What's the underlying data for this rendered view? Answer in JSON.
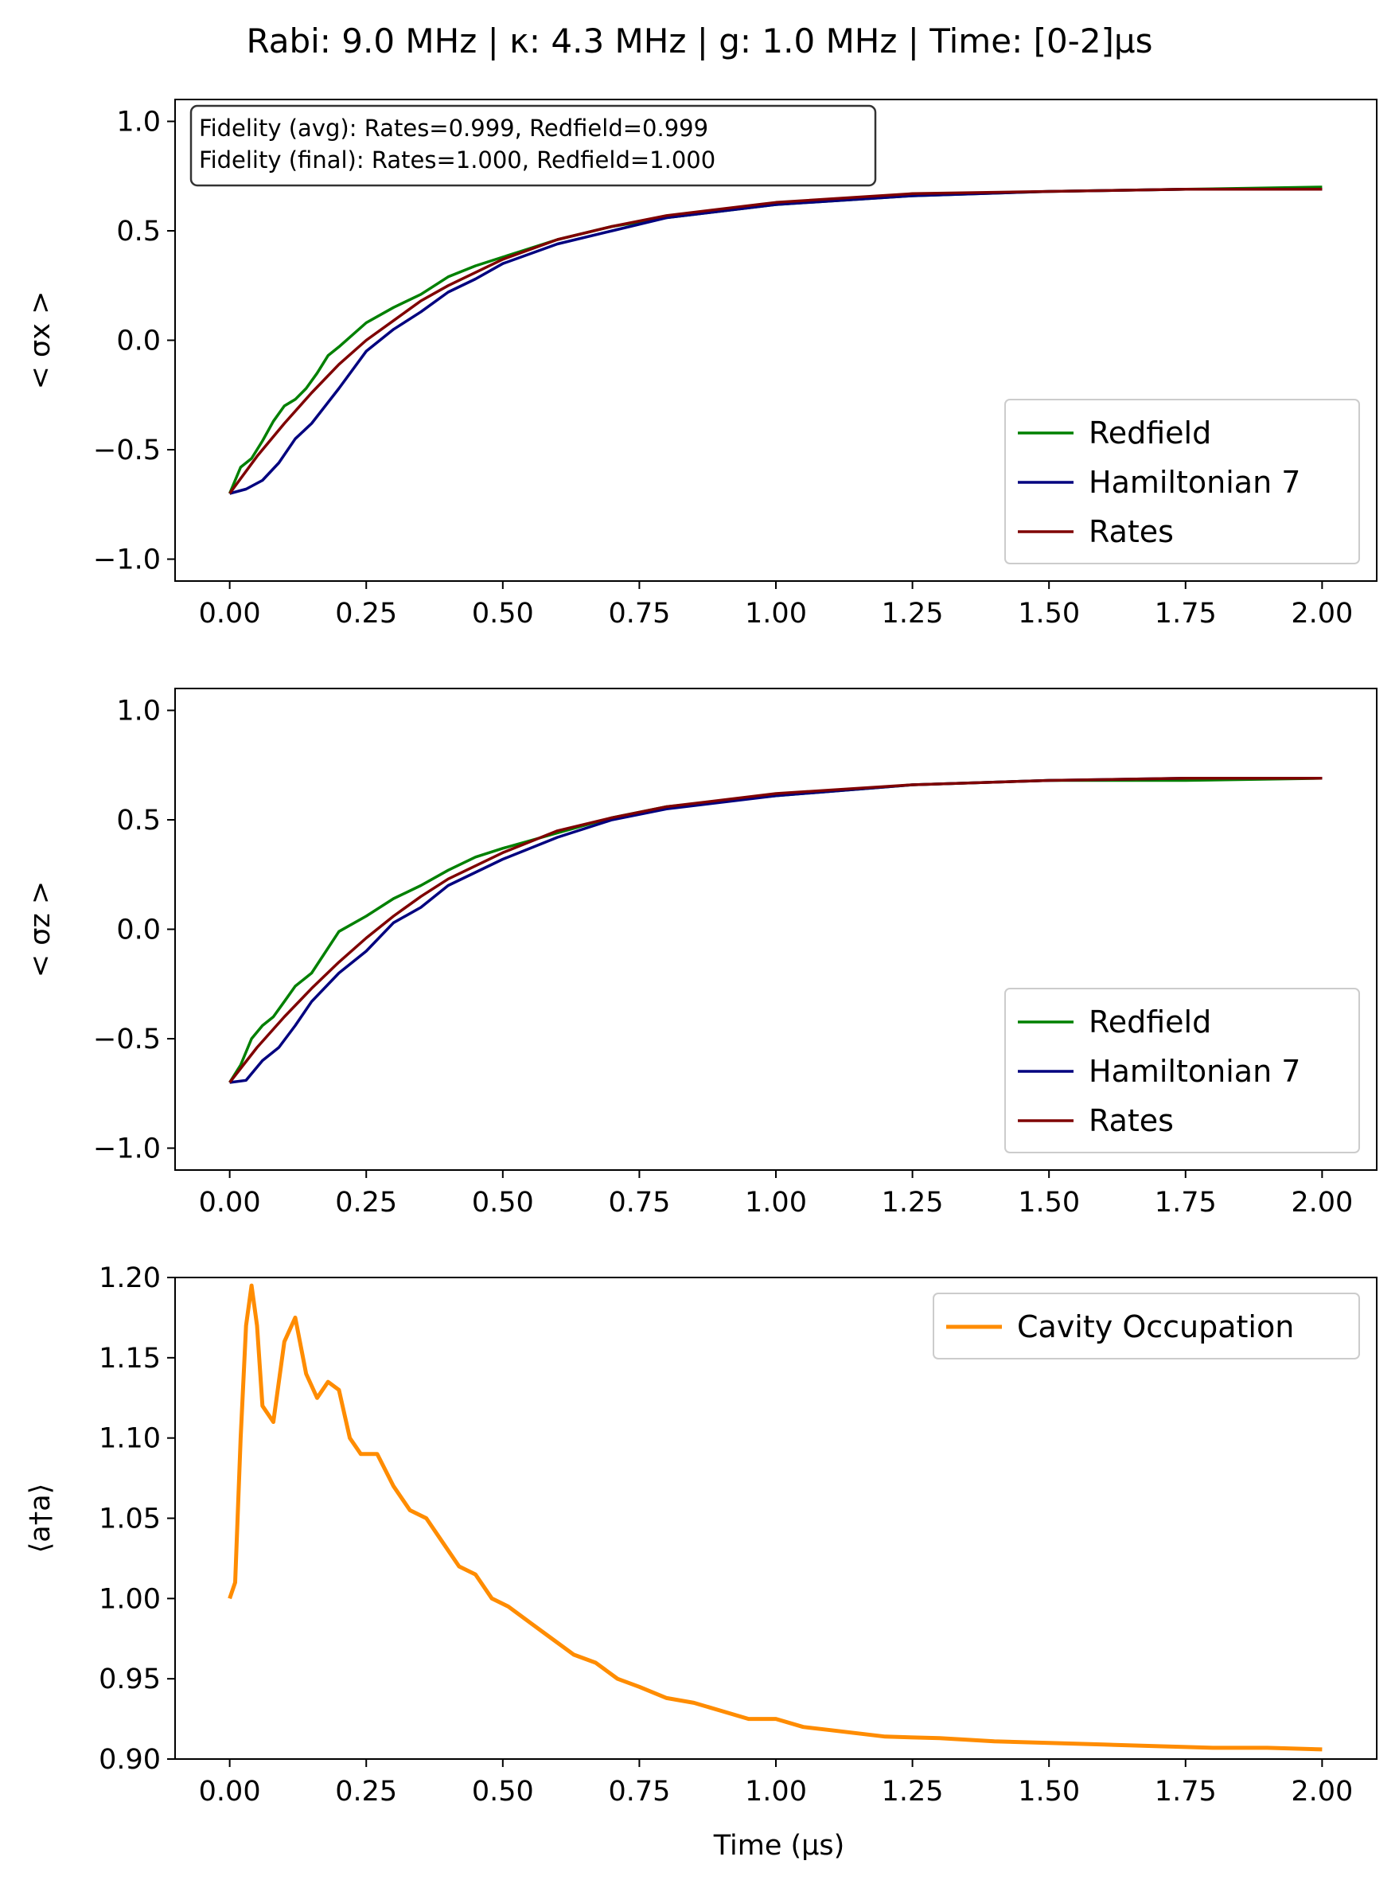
{
  "figure": {
    "title": "Rabi: 9.0 MHz | κ: 4.3 MHz | g: 1.0 MHz | Time: [0-2]μs",
    "xlabel": "Time (μs)"
  },
  "chart_data": [
    {
      "type": "line",
      "ylabel": "< σx >",
      "xlim": [
        -0.1,
        2.1
      ],
      "ylim": [
        -1.1,
        1.1
      ],
      "x_ticks": [
        "0.00",
        "0.25",
        "0.50",
        "0.75",
        "1.00",
        "1.25",
        "1.50",
        "1.75",
        "2.00"
      ],
      "y_ticks": [
        "−1.0",
        "−0.5",
        "0.0",
        "0.5",
        "1.0"
      ],
      "grid": false,
      "legend_position": "lower-right",
      "annotation": [
        "Fidelity (avg): Rates=0.999, Redfield=0.999",
        "Fidelity (final): Rates=1.000, Redfield=1.000"
      ],
      "series": [
        {
          "name": "Redfield",
          "color": "#008000",
          "x": [
            0,
            0.02,
            0.04,
            0.06,
            0.08,
            0.1,
            0.12,
            0.14,
            0.16,
            0.18,
            0.2,
            0.25,
            0.3,
            0.35,
            0.4,
            0.45,
            0.5,
            0.6,
            0.7,
            0.8,
            1.0,
            1.25,
            1.5,
            1.75,
            2.0
          ],
          "y": [
            -0.7,
            -0.58,
            -0.54,
            -0.46,
            -0.37,
            -0.3,
            -0.27,
            -0.22,
            -0.15,
            -0.07,
            -0.03,
            0.08,
            0.15,
            0.21,
            0.29,
            0.34,
            0.38,
            0.46,
            0.52,
            0.56,
            0.62,
            0.66,
            0.68,
            0.69,
            0.7
          ]
        },
        {
          "name": "Hamiltonian 7",
          "color": "#00007f",
          "x": [
            0,
            0.03,
            0.06,
            0.09,
            0.12,
            0.15,
            0.2,
            0.25,
            0.3,
            0.35,
            0.4,
            0.45,
            0.5,
            0.6,
            0.7,
            0.8,
            1.0,
            1.25,
            1.5,
            1.75,
            2.0
          ],
          "y": [
            -0.7,
            -0.68,
            -0.64,
            -0.56,
            -0.45,
            -0.38,
            -0.22,
            -0.05,
            0.05,
            0.13,
            0.22,
            0.28,
            0.35,
            0.44,
            0.5,
            0.56,
            0.62,
            0.66,
            0.68,
            0.69,
            0.69
          ]
        },
        {
          "name": "Rates",
          "color": "#7f0000",
          "x": [
            0,
            0.05,
            0.1,
            0.15,
            0.2,
            0.25,
            0.3,
            0.35,
            0.4,
            0.5,
            0.6,
            0.7,
            0.8,
            1.0,
            1.25,
            1.5,
            1.75,
            2.0
          ],
          "y": [
            -0.7,
            -0.53,
            -0.38,
            -0.24,
            -0.11,
            0.0,
            0.09,
            0.18,
            0.25,
            0.37,
            0.46,
            0.52,
            0.57,
            0.63,
            0.67,
            0.68,
            0.69,
            0.69
          ]
        }
      ]
    },
    {
      "type": "line",
      "ylabel": "< σz >",
      "xlim": [
        -0.1,
        2.1
      ],
      "ylim": [
        -1.1,
        1.1
      ],
      "x_ticks": [
        "0.00",
        "0.25",
        "0.50",
        "0.75",
        "1.00",
        "1.25",
        "1.50",
        "1.75",
        "2.00"
      ],
      "y_ticks": [
        "−1.0",
        "−0.5",
        "0.0",
        "0.5",
        "1.0"
      ],
      "grid": false,
      "legend_position": "lower-right",
      "series": [
        {
          "name": "Redfield",
          "color": "#008000",
          "x": [
            0,
            0.02,
            0.04,
            0.06,
            0.08,
            0.1,
            0.12,
            0.15,
            0.2,
            0.25,
            0.3,
            0.35,
            0.4,
            0.45,
            0.5,
            0.6,
            0.7,
            0.8,
            1.0,
            1.25,
            1.5,
            1.75,
            2.0
          ],
          "y": [
            -0.7,
            -0.62,
            -0.5,
            -0.44,
            -0.4,
            -0.33,
            -0.26,
            -0.2,
            -0.01,
            0.06,
            0.14,
            0.2,
            0.27,
            0.33,
            0.37,
            0.44,
            0.51,
            0.56,
            0.61,
            0.66,
            0.68,
            0.68,
            0.69
          ]
        },
        {
          "name": "Hamiltonian 7",
          "color": "#00007f",
          "x": [
            0,
            0.03,
            0.06,
            0.09,
            0.12,
            0.15,
            0.2,
            0.25,
            0.3,
            0.35,
            0.4,
            0.45,
            0.5,
            0.6,
            0.7,
            0.8,
            1.0,
            1.25,
            1.5,
            1.75,
            2.0
          ],
          "y": [
            -0.7,
            -0.69,
            -0.6,
            -0.54,
            -0.44,
            -0.33,
            -0.2,
            -0.1,
            0.03,
            0.1,
            0.2,
            0.26,
            0.32,
            0.42,
            0.5,
            0.55,
            0.61,
            0.66,
            0.68,
            0.69,
            0.69
          ]
        },
        {
          "name": "Rates",
          "color": "#7f0000",
          "x": [
            0,
            0.05,
            0.1,
            0.15,
            0.2,
            0.25,
            0.3,
            0.35,
            0.4,
            0.5,
            0.6,
            0.7,
            0.8,
            1.0,
            1.25,
            1.5,
            1.75,
            2.0
          ],
          "y": [
            -0.7,
            -0.54,
            -0.4,
            -0.27,
            -0.15,
            -0.04,
            0.06,
            0.15,
            0.23,
            0.35,
            0.45,
            0.51,
            0.56,
            0.62,
            0.66,
            0.68,
            0.69,
            0.69
          ]
        }
      ]
    },
    {
      "type": "line",
      "ylabel": "⟨a†a⟩",
      "xlabel": "Time (μs)",
      "xlim": [
        -0.1,
        2.1
      ],
      "ylim": [
        0.9,
        1.2
      ],
      "x_ticks": [
        "0.00",
        "0.25",
        "0.50",
        "0.75",
        "1.00",
        "1.25",
        "1.50",
        "1.75",
        "2.00"
      ],
      "y_ticks": [
        "0.90",
        "0.95",
        "1.00",
        "1.05",
        "1.10",
        "1.15",
        "1.20"
      ],
      "grid": false,
      "legend_position": "top-right",
      "series": [
        {
          "name": "Cavity Occupation",
          "color": "#ff8c00",
          "x": [
            0,
            0.01,
            0.02,
            0.03,
            0.04,
            0.05,
            0.06,
            0.08,
            0.1,
            0.12,
            0.14,
            0.16,
            0.18,
            0.2,
            0.22,
            0.24,
            0.27,
            0.3,
            0.33,
            0.36,
            0.39,
            0.42,
            0.45,
            0.48,
            0.51,
            0.55,
            0.59,
            0.63,
            0.67,
            0.71,
            0.75,
            0.8,
            0.85,
            0.9,
            0.95,
            1.0,
            1.05,
            1.1,
            1.2,
            1.3,
            1.4,
            1.5,
            1.6,
            1.7,
            1.8,
            1.9,
            2.0
          ],
          "y": [
            1.0,
            1.01,
            1.1,
            1.17,
            1.195,
            1.17,
            1.12,
            1.11,
            1.16,
            1.175,
            1.14,
            1.125,
            1.135,
            1.13,
            1.1,
            1.09,
            1.09,
            1.07,
            1.055,
            1.05,
            1.035,
            1.02,
            1.015,
            1.0,
            0.995,
            0.985,
            0.975,
            0.965,
            0.96,
            0.95,
            0.945,
            0.938,
            0.935,
            0.93,
            0.925,
            0.925,
            0.92,
            0.918,
            0.914,
            0.913,
            0.911,
            0.91,
            0.909,
            0.908,
            0.907,
            0.907,
            0.906
          ]
        }
      ]
    }
  ]
}
